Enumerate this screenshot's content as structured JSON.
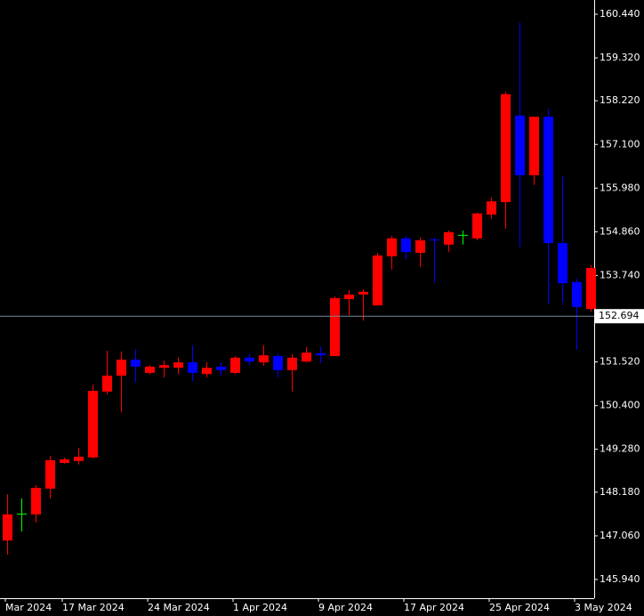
{
  "chart_data": {
    "type": "candlestick",
    "categories": [
      "Mar 2024",
      null,
      null,
      null,
      "17 Mar 2024",
      null,
      null,
      null,
      null,
      null,
      "24 Mar 2024",
      null,
      null,
      null,
      null,
      null,
      "1 Apr 2024",
      null,
      null,
      null,
      null,
      null,
      "9 Apr 2024",
      null,
      null,
      null,
      null,
      null,
      "17 Apr 2024",
      null,
      null,
      null,
      null,
      null,
      "25 Apr 2024",
      null,
      null,
      null,
      null,
      null,
      "3 May 2024",
      null
    ],
    "open": [
      146.94,
      147.63,
      147.61,
      148.27,
      148.93,
      148.98,
      149.07,
      150.76,
      151.17,
      151.58,
      151.24,
      151.37,
      151.37,
      151.51,
      151.21,
      151.4,
      151.24,
      151.63,
      151.51,
      151.67,
      151.31,
      151.53,
      151.74,
      151.67,
      153.13,
      153.25,
      152.97,
      154.23,
      154.69,
      154.32,
      154.66,
      154.53,
      154.78,
      154.69,
      155.3,
      155.62,
      157.84,
      156.31,
      157.81,
      154.57,
      153.57,
      152.88
    ],
    "high": [
      148.13,
      148.02,
      148.36,
      149.11,
      149.07,
      149.32,
      150.94,
      151.81,
      151.79,
      151.85,
      151.44,
      151.56,
      151.63,
      151.95,
      151.51,
      151.51,
      151.67,
      151.74,
      151.95,
      151.74,
      151.72,
      151.9,
      151.92,
      153.2,
      153.36,
      153.38,
      154.32,
      154.75,
      154.75,
      154.71,
      154.71,
      154.89,
      154.89,
      155.35,
      155.74,
      158.45,
      160.23,
      157.81,
      158.02,
      156.28,
      153.66,
      154.0
    ],
    "low": [
      146.58,
      147.17,
      147.4,
      148.02,
      148.91,
      148.89,
      149.05,
      150.69,
      150.23,
      150.99,
      151.21,
      151.12,
      151.21,
      151.03,
      151.12,
      151.17,
      151.21,
      151.44,
      151.42,
      151.12,
      150.76,
      151.51,
      151.49,
      151.67,
      152.72,
      152.58,
      152.97,
      153.89,
      154.16,
      153.96,
      153.54,
      154.34,
      154.53,
      154.64,
      155.19,
      154.94,
      154.46,
      156.06,
      153.0,
      153.04,
      151.83,
      152.81
    ],
    "close": [
      147.61,
      147.63,
      148.29,
      149.0,
      149.02,
      149.09,
      150.78,
      151.17,
      151.58,
      151.4,
      151.4,
      151.44,
      151.51,
      151.24,
      151.37,
      151.31,
      151.63,
      151.53,
      151.69,
      151.31,
      151.63,
      151.76,
      151.69,
      153.16,
      153.25,
      153.32,
      154.25,
      154.69,
      154.34,
      154.64,
      154.64,
      154.85,
      154.78,
      155.33,
      155.64,
      158.39,
      156.31,
      157.81,
      154.57,
      153.54,
      152.93,
      153.93
    ],
    "up_color": "#ff0000",
    "down_color": "#0000ff",
    "doji_color": "#00ff00",
    "ylim": [
      145.46,
      160.805
    ],
    "yticks": [
      {
        "value": 160.44,
        "label": "160.440"
      },
      {
        "value": 159.32,
        "label": "159.320"
      },
      {
        "value": 158.22,
        "label": "158.220"
      },
      {
        "value": 157.1,
        "label": "157.100"
      },
      {
        "value": 155.98,
        "label": "155.980"
      },
      {
        "value": 154.86,
        "label": "154.860"
      },
      {
        "value": 153.74,
        "label": "153.740"
      },
      {
        "value": 151.52,
        "label": "151.520"
      },
      {
        "value": 150.4,
        "label": "150.400"
      },
      {
        "value": 149.28,
        "label": "149.280"
      },
      {
        "value": 148.18,
        "label": "148.180"
      },
      {
        "value": 147.06,
        "label": "147.060"
      },
      {
        "value": 145.94,
        "label": "145.940"
      }
    ],
    "current_price": 152.694,
    "grid": false
  }
}
